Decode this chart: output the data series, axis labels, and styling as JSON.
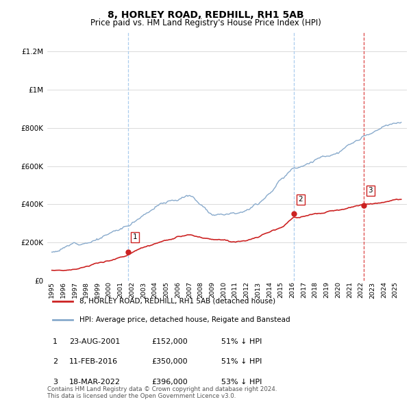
{
  "title": "8, HORLEY ROAD, REDHILL, RH1 5AB",
  "subtitle": "Price paid vs. HM Land Registry's House Price Index (HPI)",
  "ylim": [
    0,
    1300000
  ],
  "yticks": [
    0,
    200000,
    400000,
    600000,
    800000,
    1000000,
    1200000
  ],
  "sale_points": [
    {
      "label": "1",
      "year": 2001.64,
      "price": 152000
    },
    {
      "label": "2",
      "year": 2016.11,
      "price": 350000
    },
    {
      "label": "3",
      "year": 2022.21,
      "price": 396000
    }
  ],
  "sale_vlines": [
    {
      "x": 2001.64,
      "color": "#aaccee"
    },
    {
      "x": 2016.11,
      "color": "#aaccee"
    },
    {
      "x": 2022.21,
      "color": "#dd4444"
    }
  ],
  "legend_line1": "8, HORLEY ROAD, REDHILL, RH1 5AB (detached house)",
  "legend_line2": "HPI: Average price, detached house, Reigate and Banstead",
  "table_rows": [
    {
      "num": "1",
      "date": "23-AUG-2001",
      "price": "£152,000",
      "hpi": "51% ↓ HPI"
    },
    {
      "num": "2",
      "date": "11-FEB-2016",
      "price": "£350,000",
      "hpi": "51% ↓ HPI"
    },
    {
      "num": "3",
      "date": "18-MAR-2022",
      "price": "£396,000",
      "hpi": "53% ↓ HPI"
    }
  ],
  "footnote": "Contains HM Land Registry data © Crown copyright and database right 2024.\nThis data is licensed under the Open Government Licence v3.0.",
  "line_red_color": "#cc2222",
  "line_blue_color": "#88aacc",
  "bg_color": "#ffffff"
}
